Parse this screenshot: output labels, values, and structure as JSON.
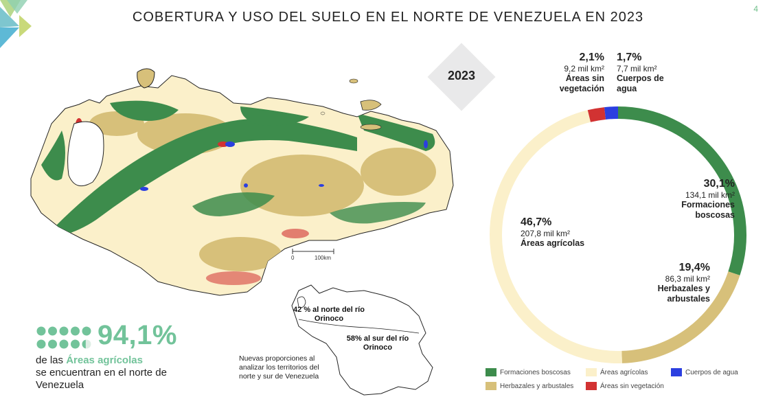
{
  "page": {
    "title": "COBERTURA Y USO DEL SUELO EN EL NORTE DE VENEZUELA EN 2023",
    "page_number": "4",
    "year_badge": "2023"
  },
  "colors": {
    "formaciones_boscosas": "#3d8c4c",
    "areas_agricolas": "#fbf0ca",
    "herbazales_arbustales": "#d7c07a",
    "areas_sin_vegetacion": "#d23232",
    "cuerpos_agua": "#2b3fe0",
    "accent": "#72c39a"
  },
  "map": {
    "scale_bar": {
      "start": "0",
      "end": "100km"
    },
    "inset": {
      "north_label": "42 % al norte del río Orinoco",
      "south_label": "58% al sur del río Orinoco"
    },
    "note": "Nuevas proporciones al analizar los territorios del norte y sur de Venezuela"
  },
  "highlight": {
    "percent": "94,1%",
    "dots_total": 10,
    "dots_filled": 9.41,
    "text_prefix": "de las",
    "text_highlight": "Áreas agrícolas",
    "text_suffix": "se encuentran en el norte de Venezuela"
  },
  "chart_data": {
    "type": "pie",
    "title": "",
    "donut": true,
    "slices": [
      {
        "name": "Formaciones boscosas",
        "percent": 30.1,
        "pct_label": "30,1%",
        "area_label": "134,1 mil km²",
        "color": "#3d8c4c"
      },
      {
        "name": "Herbazales y arbustales",
        "percent": 19.4,
        "pct_label": "19,4%",
        "area_label": "86,3 mil km²",
        "color": "#d7c07a"
      },
      {
        "name": "Áreas agrícolas",
        "percent": 46.7,
        "pct_label": "46,7%",
        "area_label": "207,8 mil km²",
        "color": "#fbf0ca"
      },
      {
        "name": "Áreas sin vegetación",
        "percent": 2.1,
        "pct_label": "2,1%",
        "area_label": "9,2 mil km²",
        "color": "#d23232"
      },
      {
        "name": "Cuerpos de agua",
        "percent": 1.7,
        "pct_label": "1,7%",
        "area_label": "7,7 mil km²",
        "color": "#2b3fe0"
      }
    ],
    "legend": [
      {
        "name": "Formaciones boscosas",
        "color": "#3d8c4c"
      },
      {
        "name": "Áreas agrícolas",
        "color": "#fbf0ca"
      },
      {
        "name": "Cuerpos de agua",
        "color": "#2b3fe0"
      },
      {
        "name": "Herbazales y arbustales",
        "color": "#d7c07a"
      },
      {
        "name": "Áreas sin vegetación",
        "color": "#d23232"
      }
    ],
    "legend_position": "bottom"
  }
}
